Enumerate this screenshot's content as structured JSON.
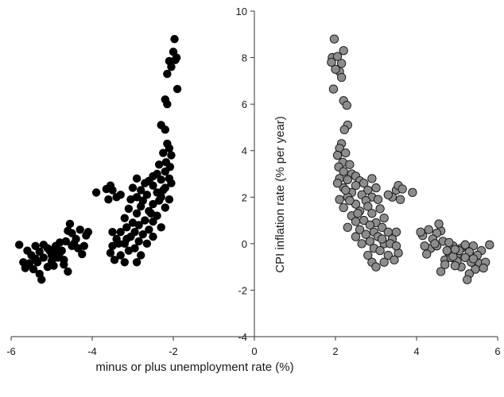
{
  "chart_data": {
    "type": "scatter",
    "title": "",
    "xlabel": "minus or plus unemployment rate (%)",
    "ylabel": "CPI inflation rate (% per year)",
    "xlim": [
      -6,
      6
    ],
    "ylim": [
      -4,
      10
    ],
    "x_ticks": [
      -6,
      -4,
      -2,
      0,
      2,
      4,
      6
    ],
    "y_ticks": [
      -4,
      -2,
      0,
      2,
      4,
      6,
      8,
      10
    ],
    "grid": false,
    "legend": "none",
    "colors": {
      "black": "#000000",
      "gray": "#8c8c8c",
      "axis": "#333333",
      "gray_edge": "#111111"
    },
    "series": [
      {
        "color": "black",
        "points": [
          [
            -1.97,
            8.8
          ],
          [
            -2.0,
            8.25
          ],
          [
            -1.92,
            8.0
          ],
          [
            -1.95,
            7.9
          ],
          [
            -2.1,
            7.85
          ],
          [
            -2.05,
            7.6
          ],
          [
            -2.15,
            7.3
          ],
          [
            -1.9,
            6.65
          ],
          [
            -2.2,
            6.2
          ],
          [
            -2.15,
            6.0
          ],
          [
            -2.3,
            5.1
          ],
          [
            -2.2,
            4.9
          ],
          [
            -2.15,
            4.3
          ],
          [
            -2.1,
            4.1
          ],
          [
            -2.25,
            3.9
          ],
          [
            -2.05,
            3.8
          ],
          [
            -2.18,
            3.5
          ],
          [
            -2.35,
            3.4
          ],
          [
            -2.08,
            3.3
          ],
          [
            -2.2,
            3.1
          ],
          [
            -2.4,
            3.0
          ],
          [
            -2.5,
            2.9
          ],
          [
            -2.1,
            2.8
          ],
          [
            -2.3,
            2.75
          ],
          [
            -2.6,
            2.7
          ],
          [
            -2.7,
            2.6
          ],
          [
            -2.9,
            2.8
          ],
          [
            -2.5,
            2.5
          ],
          [
            -2.2,
            2.4
          ],
          [
            -2.8,
            2.3
          ],
          [
            -3.0,
            2.4
          ],
          [
            -2.4,
            2.2
          ],
          [
            -2.65,
            2.1
          ],
          [
            -2.9,
            2.0
          ],
          [
            -2.3,
            2.0
          ],
          [
            -2.1,
            1.9
          ],
          [
            -2.75,
            1.85
          ],
          [
            -3.05,
            1.9
          ],
          [
            -2.5,
            1.7
          ],
          [
            -2.8,
            1.6
          ],
          [
            -2.2,
            1.55
          ],
          [
            -3.1,
            1.5
          ],
          [
            -2.6,
            1.4
          ],
          [
            -2.9,
            1.3
          ],
          [
            -2.4,
            1.2
          ],
          [
            -3.2,
            1.1
          ],
          [
            -2.7,
            1.0
          ],
          [
            -2.5,
            0.95
          ],
          [
            -3.0,
            0.9
          ],
          [
            -2.85,
            0.8
          ],
          [
            -2.3,
            0.7
          ],
          [
            -3.15,
            0.7
          ],
          [
            -2.6,
            0.6
          ],
          [
            -2.95,
            0.5
          ],
          [
            -3.3,
            0.5
          ],
          [
            -2.75,
            0.4
          ],
          [
            -3.05,
            0.3
          ],
          [
            -2.5,
            0.3
          ],
          [
            -3.4,
            0.2
          ],
          [
            -2.85,
            0.1
          ],
          [
            -3.2,
            0.0
          ],
          [
            -2.65,
            0.0
          ],
          [
            -3.5,
            0.5
          ],
          [
            -3.35,
            0.0
          ],
          [
            -2.95,
            -0.2
          ],
          [
            -3.1,
            -0.3
          ],
          [
            -3.55,
            -0.4
          ],
          [
            -3.3,
            -0.5
          ],
          [
            -2.8,
            -0.5
          ],
          [
            -3.45,
            -0.7
          ],
          [
            -3.2,
            -0.8
          ],
          [
            -2.9,
            -0.8
          ],
          [
            -3.5,
            -0.1
          ],
          [
            -3.15,
            0.2
          ],
          [
            -2.55,
            1.3
          ],
          [
            -2.25,
            2.3
          ],
          [
            -2.35,
            1.85
          ],
          [
            -2.05,
            2.6
          ],
          [
            -3.9,
            2.2
          ],
          [
            -3.6,
            1.9
          ],
          [
            -3.4,
            2.0
          ],
          [
            -3.5,
            2.3
          ],
          [
            -3.3,
            2.1
          ],
          [
            -3.55,
            2.5
          ],
          [
            -3.65,
            2.35
          ],
          [
            -5.8,
            -0.05
          ],
          [
            -5.6,
            -0.3
          ],
          [
            -5.5,
            -0.5
          ],
          [
            -5.4,
            -0.1
          ],
          [
            -5.3,
            -0.35
          ],
          [
            -5.2,
            -0.6
          ],
          [
            -5.1,
            -0.2
          ],
          [
            -5.0,
            -0.5
          ],
          [
            -4.9,
            -0.1
          ],
          [
            -4.8,
            -0.4
          ],
          [
            -4.7,
            -0.7
          ],
          [
            -5.55,
            -0.85
          ],
          [
            -5.45,
            -1.1
          ],
          [
            -5.3,
            -1.3
          ],
          [
            -5.25,
            -1.55
          ],
          [
            -5.35,
            -0.8
          ],
          [
            -5.1,
            -1.0
          ],
          [
            -5.0,
            -0.75
          ],
          [
            -4.95,
            -0.95
          ],
          [
            -4.85,
            -0.6
          ],
          [
            -4.75,
            -0.3
          ],
          [
            -4.65,
            0.1
          ],
          [
            -4.6,
            0.55
          ],
          [
            -4.55,
            0.85
          ],
          [
            -4.5,
            0.45
          ],
          [
            -4.4,
            0.2
          ],
          [
            -4.35,
            -0.2
          ],
          [
            -4.25,
            -0.45
          ],
          [
            -4.15,
            0.35
          ],
          [
            -4.1,
            0.5
          ],
          [
            -4.6,
            -1.2
          ],
          [
            -4.7,
            -0.9
          ],
          [
            -4.5,
            -0.1
          ],
          [
            -4.3,
            0.6
          ],
          [
            -5.2,
            -0.05
          ],
          [
            -5.05,
            -0.3
          ],
          [
            -4.9,
            -0.55
          ],
          [
            -5.4,
            -0.65
          ],
          [
            -5.7,
            -0.8
          ],
          [
            -5.65,
            -1.05
          ],
          [
            -4.45,
            0.0
          ],
          [
            -4.2,
            -0.1
          ],
          [
            -4.8,
            0.05
          ],
          [
            -4.95,
            -0.25
          ]
        ]
      },
      {
        "color": "gray",
        "points": [
          [
            1.97,
            8.8
          ],
          [
            2.2,
            8.3
          ],
          [
            1.92,
            8.0
          ],
          [
            2.05,
            8.05
          ],
          [
            2.15,
            7.75
          ],
          [
            1.9,
            7.8
          ],
          [
            2.1,
            7.4
          ],
          [
            2.0,
            7.5
          ],
          [
            2.15,
            7.15
          ],
          [
            1.95,
            6.65
          ],
          [
            2.2,
            6.15
          ],
          [
            2.28,
            5.95
          ],
          [
            2.3,
            5.1
          ],
          [
            2.22,
            4.9
          ],
          [
            2.15,
            4.3
          ],
          [
            2.1,
            4.1
          ],
          [
            2.25,
            3.9
          ],
          [
            2.05,
            3.8
          ],
          [
            2.18,
            3.5
          ],
          [
            2.35,
            3.4
          ],
          [
            2.08,
            3.3
          ],
          [
            2.2,
            3.1
          ],
          [
            2.4,
            3.0
          ],
          [
            2.5,
            2.9
          ],
          [
            2.1,
            2.8
          ],
          [
            2.3,
            2.75
          ],
          [
            2.6,
            2.7
          ],
          [
            2.7,
            2.6
          ],
          [
            2.9,
            2.8
          ],
          [
            2.5,
            2.5
          ],
          [
            2.2,
            2.4
          ],
          [
            2.8,
            2.3
          ],
          [
            3.0,
            2.4
          ],
          [
            2.4,
            2.2
          ],
          [
            2.65,
            2.1
          ],
          [
            2.9,
            2.0
          ],
          [
            2.3,
            2.0
          ],
          [
            2.1,
            1.9
          ],
          [
            2.75,
            1.85
          ],
          [
            3.05,
            1.9
          ],
          [
            2.5,
            1.7
          ],
          [
            2.8,
            1.6
          ],
          [
            2.2,
            1.55
          ],
          [
            3.1,
            1.5
          ],
          [
            2.6,
            1.4
          ],
          [
            2.9,
            1.3
          ],
          [
            2.4,
            1.2
          ],
          [
            3.2,
            1.1
          ],
          [
            2.7,
            1.0
          ],
          [
            2.5,
            0.95
          ],
          [
            3.0,
            0.9
          ],
          [
            2.85,
            0.8
          ],
          [
            2.3,
            0.7
          ],
          [
            3.15,
            0.7
          ],
          [
            2.6,
            0.6
          ],
          [
            2.95,
            0.5
          ],
          [
            3.3,
            0.5
          ],
          [
            2.75,
            0.4
          ],
          [
            3.05,
            0.3
          ],
          [
            2.5,
            0.3
          ],
          [
            3.4,
            0.2
          ],
          [
            2.85,
            0.1
          ],
          [
            3.2,
            0.0
          ],
          [
            2.65,
            0.0
          ],
          [
            3.5,
            0.5
          ],
          [
            3.35,
            0.0
          ],
          [
            2.95,
            -0.2
          ],
          [
            3.1,
            -0.3
          ],
          [
            3.55,
            -0.4
          ],
          [
            3.3,
            -0.5
          ],
          [
            2.8,
            -0.5
          ],
          [
            3.45,
            -0.7
          ],
          [
            3.2,
            -0.8
          ],
          [
            2.9,
            -0.8
          ],
          [
            3.0,
            -1.0
          ],
          [
            3.5,
            -0.1
          ],
          [
            3.15,
            0.2
          ],
          [
            2.55,
            1.3
          ],
          [
            2.25,
            2.3
          ],
          [
            2.35,
            1.85
          ],
          [
            2.05,
            2.6
          ],
          [
            3.9,
            2.2
          ],
          [
            3.6,
            1.9
          ],
          [
            3.4,
            2.0
          ],
          [
            3.5,
            2.3
          ],
          [
            3.3,
            2.1
          ],
          [
            3.55,
            2.5
          ],
          [
            3.65,
            2.35
          ],
          [
            5.8,
            -0.05
          ],
          [
            5.6,
            -0.3
          ],
          [
            5.5,
            -0.5
          ],
          [
            5.4,
            -0.1
          ],
          [
            5.3,
            -0.35
          ],
          [
            5.2,
            -0.6
          ],
          [
            5.1,
            -0.2
          ],
          [
            5.0,
            -0.5
          ],
          [
            4.9,
            -0.1
          ],
          [
            4.8,
            -0.4
          ],
          [
            4.7,
            -0.7
          ],
          [
            5.55,
            -0.85
          ],
          [
            5.45,
            -1.1
          ],
          [
            5.3,
            -1.3
          ],
          [
            5.25,
            -1.55
          ],
          [
            5.35,
            -0.8
          ],
          [
            5.1,
            -1.0
          ],
          [
            5.0,
            -0.75
          ],
          [
            4.95,
            -0.95
          ],
          [
            4.85,
            -0.6
          ],
          [
            4.75,
            -0.3
          ],
          [
            4.65,
            0.1
          ],
          [
            4.6,
            0.55
          ],
          [
            4.55,
            0.85
          ],
          [
            4.5,
            0.45
          ],
          [
            4.4,
            0.2
          ],
          [
            4.35,
            -0.2
          ],
          [
            4.25,
            -0.45
          ],
          [
            4.15,
            0.35
          ],
          [
            4.1,
            0.5
          ],
          [
            4.6,
            -1.2
          ],
          [
            4.7,
            -0.9
          ],
          [
            4.5,
            -0.1
          ],
          [
            4.3,
            0.6
          ],
          [
            5.2,
            -0.05
          ],
          [
            5.05,
            -0.3
          ],
          [
            4.9,
            -0.55
          ],
          [
            5.4,
            -0.65
          ],
          [
            5.7,
            -0.8
          ],
          [
            5.65,
            -1.05
          ],
          [
            4.45,
            0.0
          ],
          [
            4.2,
            -0.1
          ],
          [
            4.8,
            0.05
          ],
          [
            4.95,
            -0.25
          ]
        ]
      }
    ]
  }
}
